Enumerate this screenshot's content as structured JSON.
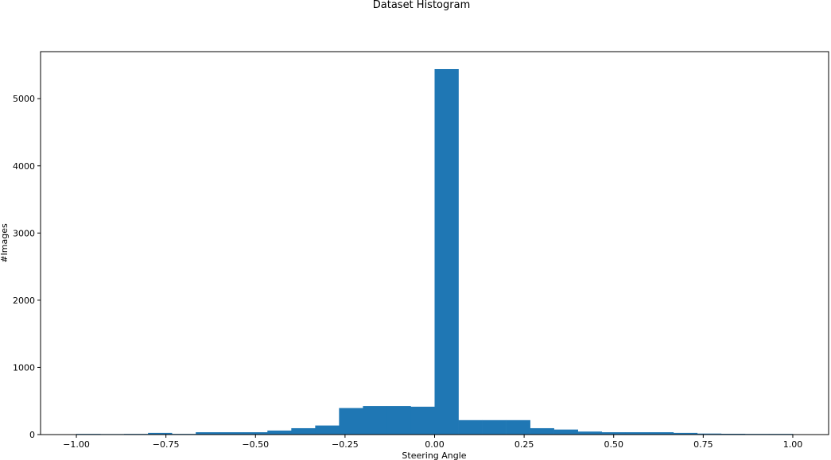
{
  "chart_data": {
    "type": "bar",
    "title": "Dataset Histogram",
    "xlabel": "Steering Angle",
    "ylabel": "#Images",
    "xlim": [
      -1.1,
      1.1
    ],
    "ylim": [
      0,
      5700
    ],
    "grid": false,
    "bar_color": "#1f77b4",
    "x_ticks": [
      -1.0,
      -0.75,
      -0.5,
      -0.25,
      0.0,
      0.25,
      0.5,
      0.75,
      1.0
    ],
    "x_tick_labels": [
      "−1.00",
      "−0.75",
      "−0.50",
      "−0.25",
      "0.00",
      "0.25",
      "0.50",
      "0.75",
      "1.00"
    ],
    "y_ticks": [
      0,
      1000,
      2000,
      3000,
      4000,
      5000
    ],
    "y_tick_labels": [
      "0",
      "1000",
      "2000",
      "3000",
      "4000",
      "5000"
    ],
    "bin_edges": [
      -1.0,
      -0.9333,
      -0.8667,
      -0.8,
      -0.7333,
      -0.6667,
      -0.6,
      -0.5333,
      -0.4667,
      -0.4,
      -0.3333,
      -0.2667,
      -0.2,
      -0.1333,
      -0.0667,
      0.0,
      0.0667,
      0.1333,
      0.2,
      0.2667,
      0.3333,
      0.4,
      0.4667,
      0.5333,
      0.6,
      0.6667,
      0.7333,
      0.8,
      0.8667,
      0.9333,
      1.0
    ],
    "values": [
      10,
      8,
      10,
      25,
      10,
      35,
      35,
      35,
      60,
      95,
      135,
      395,
      425,
      425,
      415,
      5440,
      215,
      215,
      215,
      95,
      75,
      45,
      35,
      35,
      35,
      25,
      15,
      12,
      10,
      10
    ]
  }
}
